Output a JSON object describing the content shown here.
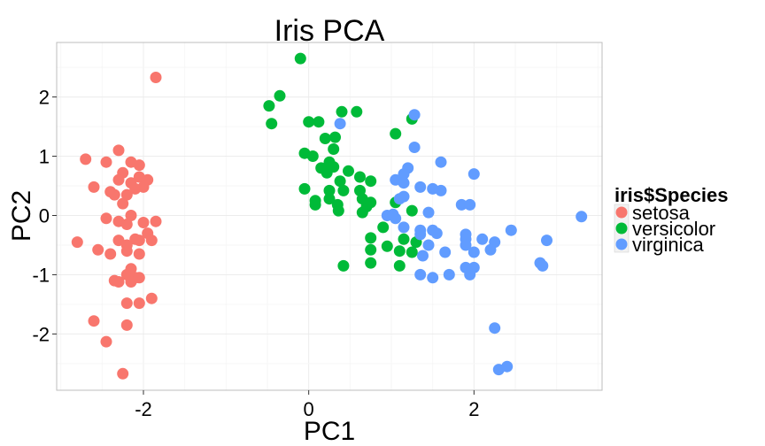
{
  "chart_data": {
    "type": "scatter",
    "title": "Iris PCA",
    "xlabel": "PC1",
    "ylabel": "PC2",
    "xlim": [
      -3.05,
      3.55
    ],
    "ylim": [
      -2.95,
      2.92
    ],
    "xticks": [
      -2,
      0,
      2
    ],
    "xtick_labels": [
      "-2",
      "0",
      "2"
    ],
    "yticks": [
      -2,
      -1,
      0,
      1,
      2
    ],
    "ytick_labels": [
      "-2",
      "-1",
      "0",
      "1",
      "2"
    ],
    "grid": true,
    "legend": {
      "title": "iris$Species",
      "placement": "right"
    },
    "series": [
      {
        "name": "setosa",
        "color": "#F8766D",
        "points": [
          [
            -1.85,
            2.33
          ],
          [
            -2.3,
            1.1
          ],
          [
            -2.7,
            0.95
          ],
          [
            -2.45,
            0.9
          ],
          [
            -2.15,
            0.9
          ],
          [
            -2.05,
            0.85
          ],
          [
            -2.25,
            0.72
          ],
          [
            -2.3,
            0.6
          ],
          [
            -2.05,
            0.65
          ],
          [
            -2.15,
            0.55
          ],
          [
            -1.95,
            0.6
          ],
          [
            -2.6,
            0.48
          ],
          [
            -2.4,
            0.4
          ],
          [
            -2.35,
            0.35
          ],
          [
            -2.2,
            0.35
          ],
          [
            -2.1,
            0.45
          ],
          [
            -2.0,
            0.48
          ],
          [
            -2.25,
            0.2
          ],
          [
            -2.45,
            -0.05
          ],
          [
            -2.3,
            -0.1
          ],
          [
            -2.2,
            -0.15
          ],
          [
            -2.0,
            -0.12
          ],
          [
            -2.15,
            0.0
          ],
          [
            -1.85,
            -0.1
          ],
          [
            -1.95,
            -0.3
          ],
          [
            -2.1,
            -0.4
          ],
          [
            -2.3,
            -0.42
          ],
          [
            -2.2,
            -0.5
          ],
          [
            -2.05,
            -0.42
          ],
          [
            -1.9,
            -0.42
          ],
          [
            -2.8,
            -0.45
          ],
          [
            -2.55,
            -0.58
          ],
          [
            -2.4,
            -0.65
          ],
          [
            -2.2,
            -0.6
          ],
          [
            -2.05,
            -0.65
          ],
          [
            -2.15,
            -0.9
          ],
          [
            -2.2,
            -1.0
          ],
          [
            -2.1,
            -1.05
          ],
          [
            -2.35,
            -1.1
          ],
          [
            -2.3,
            -1.12
          ],
          [
            -2.15,
            -1.12
          ],
          [
            -2.05,
            -1.05
          ],
          [
            -2.2,
            -1.48
          ],
          [
            -2.05,
            -1.48
          ],
          [
            -1.9,
            -1.4
          ],
          [
            -2.6,
            -1.78
          ],
          [
            -2.2,
            -1.85
          ],
          [
            -2.45,
            -2.13
          ],
          [
            -2.25,
            -2.67
          ]
        ]
      },
      {
        "name": "versicolor",
        "color": "#00BA38",
        "points": [
          [
            -0.1,
            2.65
          ],
          [
            -0.35,
            2.02
          ],
          [
            -0.48,
            1.85
          ],
          [
            -0.45,
            1.55
          ],
          [
            0.0,
            1.58
          ],
          [
            0.12,
            1.58
          ],
          [
            0.4,
            1.75
          ],
          [
            0.58,
            1.75
          ],
          [
            1.25,
            1.63
          ],
          [
            1.05,
            1.38
          ],
          [
            0.2,
            1.3
          ],
          [
            0.32,
            1.32
          ],
          [
            0.3,
            1.12
          ],
          [
            -0.05,
            1.05
          ],
          [
            0.05,
            1.0
          ],
          [
            0.25,
            0.9
          ],
          [
            0.3,
            0.82
          ],
          [
            0.15,
            0.8
          ],
          [
            0.22,
            0.72
          ],
          [
            0.48,
            0.75
          ],
          [
            0.38,
            0.58
          ],
          [
            0.62,
            0.65
          ],
          [
            0.75,
            0.58
          ],
          [
            -0.05,
            0.45
          ],
          [
            0.25,
            0.42
          ],
          [
            0.42,
            0.42
          ],
          [
            0.62,
            0.42
          ],
          [
            0.65,
            0.28
          ],
          [
            0.25,
            0.28
          ],
          [
            0.08,
            0.25
          ],
          [
            0.08,
            0.18
          ],
          [
            0.35,
            0.18
          ],
          [
            0.7,
            0.15
          ],
          [
            0.75,
            0.22
          ],
          [
            1.05,
            0.22
          ],
          [
            0.65,
            0.05
          ],
          [
            0.36,
            0.08
          ],
          [
            1.25,
            0.08
          ],
          [
            0.9,
            -0.2
          ],
          [
            0.75,
            -0.38
          ],
          [
            1.15,
            -0.4
          ],
          [
            0.95,
            -0.52
          ],
          [
            1.3,
            -0.45
          ],
          [
            0.75,
            -0.58
          ],
          [
            1.1,
            -0.6
          ],
          [
            1.25,
            -0.62
          ],
          [
            0.75,
            -0.8
          ],
          [
            0.42,
            -0.85
          ],
          [
            1.1,
            -0.85
          ]
        ]
      },
      {
        "name": "virginica",
        "color": "#619CFF",
        "points": [
          [
            1.28,
            1.7
          ],
          [
            0.38,
            1.55
          ],
          [
            1.28,
            1.15
          ],
          [
            1.6,
            0.9
          ],
          [
            1.2,
            0.8
          ],
          [
            2.0,
            0.7
          ],
          [
            1.15,
            0.7
          ],
          [
            1.05,
            0.6
          ],
          [
            1.15,
            0.55
          ],
          [
            1.35,
            0.48
          ],
          [
            1.6,
            0.42
          ],
          [
            1.5,
            0.45
          ],
          [
            1.15,
            0.32
          ],
          [
            1.1,
            0.28
          ],
          [
            1.85,
            0.18
          ],
          [
            1.95,
            0.18
          ],
          [
            1.45,
            0.05
          ],
          [
            0.95,
            0.0
          ],
          [
            1.05,
            -0.05
          ],
          [
            1.02,
            0.02
          ],
          [
            1.35,
            -0.25
          ],
          [
            1.55,
            -0.3
          ],
          [
            1.5,
            -0.25
          ],
          [
            1.15,
            -0.2
          ],
          [
            1.35,
            -0.32
          ],
          [
            1.9,
            -0.32
          ],
          [
            1.9,
            -0.4
          ],
          [
            2.1,
            -0.4
          ],
          [
            2.25,
            -0.45
          ],
          [
            2.45,
            -0.25
          ],
          [
            2.88,
            -0.42
          ],
          [
            3.3,
            -0.02
          ],
          [
            1.45,
            -0.5
          ],
          [
            1.9,
            -0.5
          ],
          [
            2.0,
            -0.62
          ],
          [
            2.2,
            -0.58
          ],
          [
            1.65,
            -0.62
          ],
          [
            1.38,
            -0.68
          ],
          [
            1.9,
            -0.88
          ],
          [
            2.0,
            -0.88
          ],
          [
            1.7,
            -1.0
          ],
          [
            1.95,
            -1.0
          ],
          [
            1.5,
            -1.05
          ],
          [
            1.35,
            -1.0
          ],
          [
            2.8,
            -0.8
          ],
          [
            2.83,
            -0.85
          ],
          [
            2.25,
            -1.9
          ],
          [
            2.3,
            -2.6
          ],
          [
            2.4,
            -2.55
          ]
        ]
      }
    ]
  }
}
